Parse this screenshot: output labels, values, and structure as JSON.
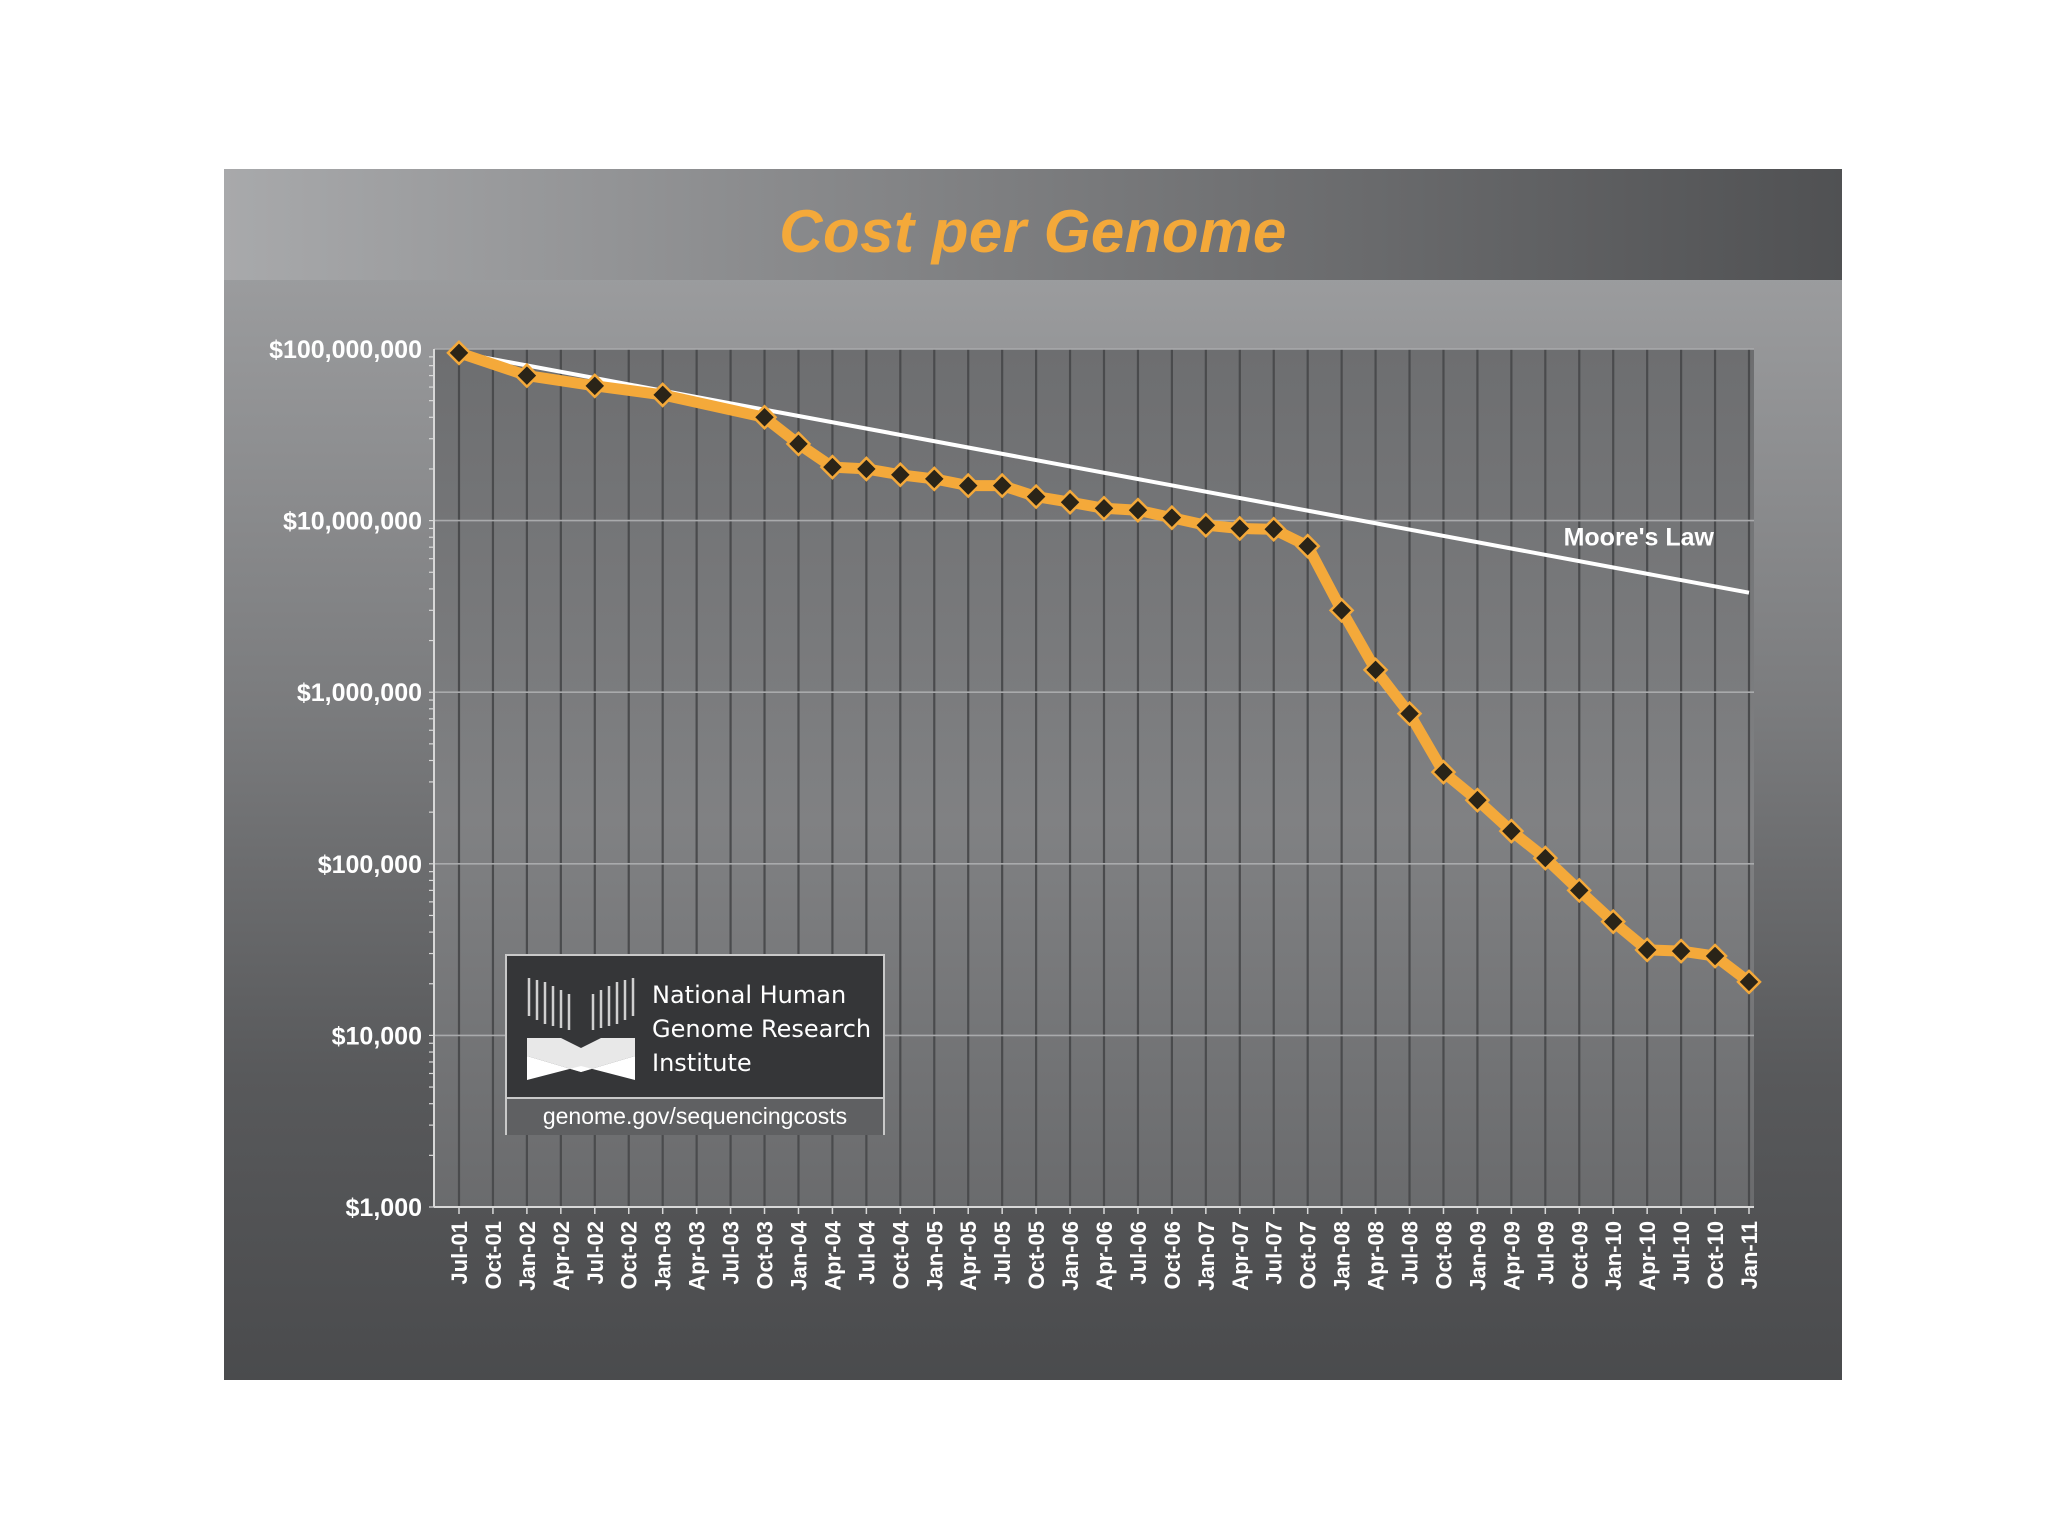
{
  "chart_data": {
    "type": "line",
    "title": "Cost per Genome",
    "xlabel": "",
    "ylabel": "",
    "y_scale": "log",
    "ylim": [
      1000,
      100000000
    ],
    "y_tick_labels": [
      "$100,000,000",
      "$10,000,000",
      "$1,000,000",
      "$100,000",
      "$10,000",
      "$1,000"
    ],
    "y_tick_values": [
      100000000,
      10000000,
      1000000,
      100000,
      10000,
      1000
    ],
    "categories": [
      "Jul-01",
      "Oct-01",
      "Jan-02",
      "Apr-02",
      "Jul-02",
      "Oct-02",
      "Jan-03",
      "Apr-03",
      "Jul-03",
      "Oct-03",
      "Jan-04",
      "Apr-04",
      "Jul-04",
      "Oct-04",
      "Jan-05",
      "Apr-05",
      "Jul-05",
      "Oct-05",
      "Jan-06",
      "Apr-06",
      "Jul-06",
      "Oct-06",
      "Jan-07",
      "Apr-07",
      "Jul-07",
      "Oct-07",
      "Jan-08",
      "Apr-08",
      "Jul-08",
      "Oct-08",
      "Jan-09",
      "Apr-09",
      "Jul-09",
      "Oct-09",
      "Jan-10",
      "Apr-10",
      "Jul-10",
      "Oct-10",
      "Jan-11"
    ],
    "grid": true,
    "series": [
      {
        "name": "",
        "color": "#f4a93a",
        "marker": "diamond",
        "x": [
          "Jul-01",
          "Jan-02",
          "Jul-02",
          "Jan-03",
          "Oct-03",
          "Jan-04",
          "Apr-04",
          "Jul-04",
          "Oct-04",
          "Jan-05",
          "Apr-05",
          "Jul-05",
          "Oct-05",
          "Jan-06",
          "Apr-06",
          "Jul-06",
          "Oct-06",
          "Jan-07",
          "Apr-07",
          "Jul-07",
          "Oct-07",
          "Jan-08",
          "Apr-08",
          "Jul-08",
          "Oct-08",
          "Jan-09",
          "Apr-09",
          "Jul-09",
          "Oct-09",
          "Jan-10",
          "Apr-10",
          "Jul-10",
          "Oct-10",
          "Jan-11"
        ],
        "values": [
          95000000,
          70000000,
          61000000,
          54000000,
          40000000,
          28000000,
          20500000,
          20000000,
          18500000,
          17500000,
          16000000,
          16000000,
          13800000,
          12800000,
          11800000,
          11500000,
          10400000,
          9400000,
          9000000,
          8900000,
          7100000,
          3000000,
          1350000,
          750000,
          342000,
          235000,
          155000,
          108000,
          70000,
          46000,
          31500,
          31000,
          29000,
          20500
        ]
      },
      {
        "name": "Moore's Law",
        "color": "#ffffff",
        "x": [
          "Jul-01",
          "Jan-11"
        ],
        "values": [
          95000000,
          3800000
        ]
      }
    ]
  },
  "logo": {
    "org_line1": "National Human",
    "org_line2": "Genome Research",
    "org_line3": "Institute",
    "url": "genome.gov/sequencingcosts"
  },
  "colors": {
    "accent": "#f4a93a",
    "marker": "#2a2418",
    "plot_bg": "#6b6c6e"
  }
}
